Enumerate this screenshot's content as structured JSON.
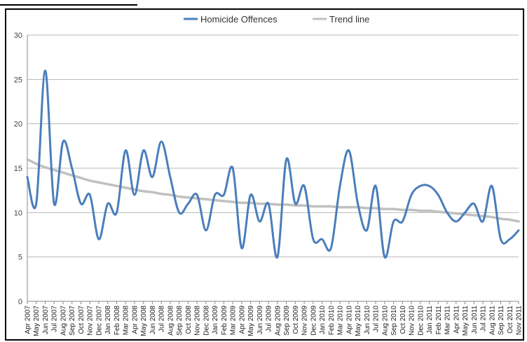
{
  "chart_data": {
    "type": "line",
    "title": "",
    "xlabel": "",
    "ylabel": "",
    "ylim": [
      0,
      30
    ],
    "yticks": [
      "0",
      "5",
      "10",
      "15",
      "20",
      "25",
      "30"
    ],
    "grid": "horizontal",
    "legend_position": "top",
    "categories": [
      "Apr 2007",
      "May 2007",
      "Jun 2007",
      "Jul 2007",
      "Aug 2007",
      "Sep 2007",
      "Oct 2007",
      "Nov 2007",
      "Dec 2007",
      "Jan 2008",
      "Feb 2008",
      "Mar 2008",
      "Apr 2008",
      "May 2008",
      "Jun 2008",
      "Jul 2008",
      "Aug 2008",
      "Sep 2008",
      "Oct 2008",
      "Nov 2008",
      "Dec 2008",
      "Jan 2009",
      "Feb 2009",
      "Mar 2009",
      "Apr 2009",
      "May 2009",
      "Jun 2009",
      "Jul 2009",
      "Aug 2009",
      "Sep 2009",
      "Oct 2009",
      "Nov 2009",
      "Dec 2009",
      "Jan 2010",
      "Feb 2010",
      "Mar 2010",
      "Apr 2010",
      "May 2010",
      "Jun 2010",
      "Jul 2010",
      "Aug 2010",
      "Sep 2010",
      "Oct 2010",
      "Nov 2010",
      "Dec 2010",
      "Jan 2011",
      "Feb 2011",
      "Mar 2011",
      "Apr 2011",
      "May 2011",
      "Jun 2011",
      "Jul 2011",
      "Aug 2011",
      "Sep 2011",
      "Oct 2011",
      "Nov 2011"
    ],
    "series": [
      {
        "name": "Homicide Offences",
        "color": "#4a7ebb",
        "values": [
          14,
          11,
          26,
          11,
          18,
          15,
          11,
          12,
          7,
          11,
          10,
          17,
          12,
          17,
          14,
          18,
          14,
          10,
          11,
          12,
          8,
          12,
          12,
          15,
          6,
          12,
          9,
          11,
          5,
          16,
          11,
          13,
          7,
          7,
          6,
          13,
          17,
          11,
          8,
          13,
          5,
          9,
          9,
          12,
          13,
          13,
          12,
          10,
          9,
          10,
          11,
          9,
          13,
          7,
          7,
          8
        ]
      },
      {
        "name": "Trend line",
        "color": "#c0c0c0",
        "values": [
          16.0,
          15.5,
          15.1,
          14.8,
          14.5,
          14.2,
          13.9,
          13.6,
          13.4,
          13.2,
          13.0,
          12.8,
          12.6,
          12.4,
          12.3,
          12.1,
          12.0,
          11.8,
          11.7,
          11.6,
          11.5,
          11.4,
          11.3,
          11.2,
          11.1,
          11.1,
          11.0,
          11.0,
          10.9,
          10.9,
          10.8,
          10.8,
          10.7,
          10.7,
          10.7,
          10.6,
          10.6,
          10.6,
          10.5,
          10.5,
          10.4,
          10.4,
          10.3,
          10.3,
          10.2,
          10.2,
          10.1,
          10.0,
          9.9,
          9.8,
          9.7,
          9.6,
          9.5,
          9.3,
          9.2,
          9.0
        ]
      }
    ]
  }
}
